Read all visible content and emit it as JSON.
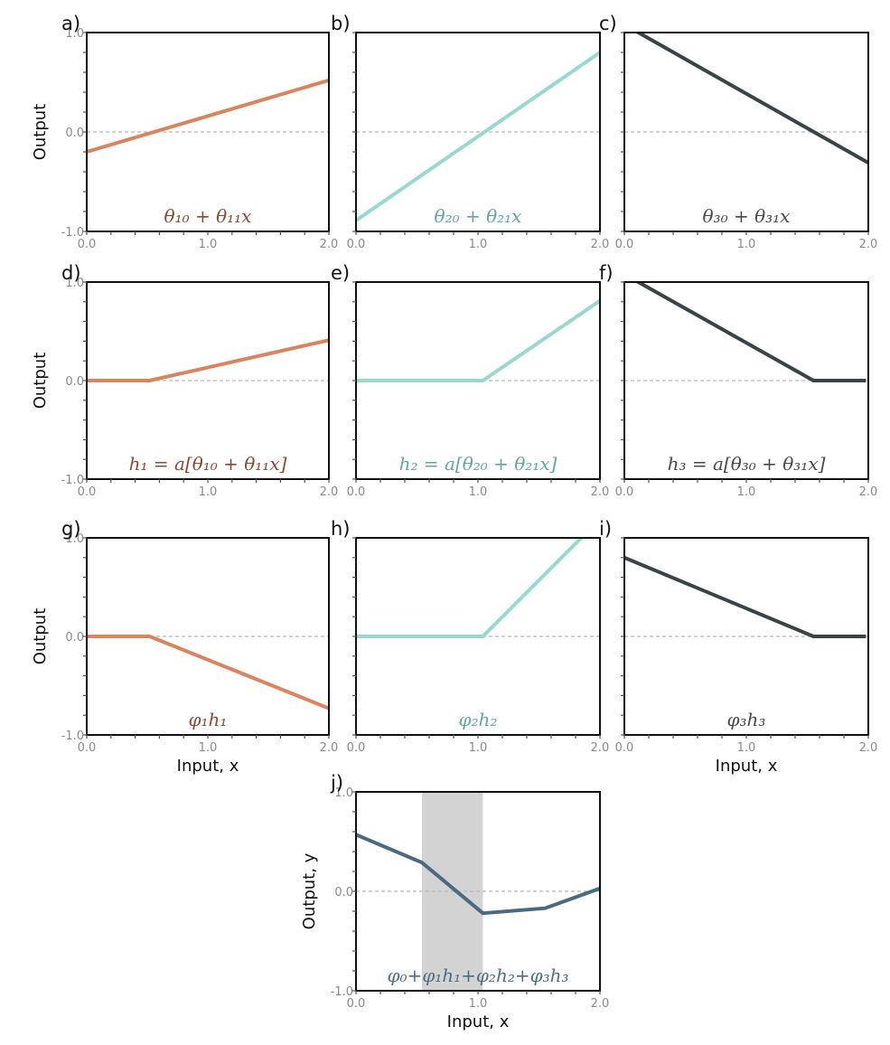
{
  "colors": {
    "orange_line": "#d9845f",
    "orange_text": "#8b4a33",
    "teal_line": "#99d8cf",
    "teal_text": "#5fa8a0",
    "dark_line": "#3a4448",
    "dark_text": "#4a4a4a",
    "final_line": "#4a6a80",
    "final_text": "#4e6e85",
    "shade": "#d3d3d3",
    "zero_line": "#b8b8b8",
    "axis": "#111111"
  },
  "chart_data": [
    {
      "id": "a",
      "type": "line",
      "letter": "a)",
      "equation": "θ₁₀ + θ₁₁x",
      "color": "orange",
      "ylabel": "Output",
      "xlabel": "",
      "xlim": [
        0,
        2
      ],
      "ylim": [
        -1,
        1
      ],
      "xticks": [
        "0.0",
        "1.0",
        "2.0"
      ],
      "yticks": [
        "-1.0",
        "0.0",
        "1.0"
      ],
      "show_yticklabels": true,
      "series": [
        {
          "name": "θ10 + θ11 x",
          "x": [
            0,
            2
          ],
          "y": [
            -0.2,
            0.52
          ]
        }
      ]
    },
    {
      "id": "b",
      "type": "line",
      "letter": "b)",
      "equation": "θ₂₀ + θ₂₁x",
      "color": "teal",
      "ylabel": "",
      "xlabel": "",
      "xlim": [
        0,
        2
      ],
      "ylim": [
        -1,
        1
      ],
      "xticks": [
        "0.0",
        "1.0",
        "2.0"
      ],
      "yticks": [
        "-1.0",
        "0.0",
        "1.0"
      ],
      "show_yticklabels": false,
      "series": [
        {
          "name": "θ20 + θ21 x",
          "x": [
            0,
            2
          ],
          "y": [
            -0.89,
            0.8
          ]
        }
      ]
    },
    {
      "id": "c",
      "type": "line",
      "letter": "c)",
      "equation": "θ₃₀ + θ₃₁x",
      "color": "dark",
      "ylabel": "",
      "xlabel": "",
      "xlim": [
        0,
        2
      ],
      "ylim": [
        -1,
        1
      ],
      "xticks": [
        "0.0",
        "1.0",
        "2.0"
      ],
      "yticks": [
        "-1.0",
        "0.0",
        "1.0"
      ],
      "show_yticklabels": false,
      "series": [
        {
          "name": "θ30 + θ31 x",
          "x": [
            0,
            2
          ],
          "y": [
            1.08,
            -0.31
          ]
        }
      ]
    },
    {
      "id": "d",
      "type": "line",
      "letter": "d)",
      "equation": "h₁ = a[θ₁₀ + θ₁₁x]",
      "color": "orange",
      "ylabel": "Output",
      "xlabel": "",
      "xlim": [
        0,
        2
      ],
      "ylim": [
        -1,
        1
      ],
      "xticks": [
        "0.0",
        "1.0",
        "2.0"
      ],
      "yticks": [
        "-1.0",
        "0.0",
        "1.0"
      ],
      "show_yticklabels": true,
      "series": [
        {
          "name": "h1",
          "x": [
            0,
            0.52,
            2
          ],
          "y": [
            0,
            0,
            0.41
          ]
        }
      ]
    },
    {
      "id": "e",
      "type": "line",
      "letter": "e)",
      "equation": "h₂ = a[θ₂₀ + θ₂₁x]",
      "color": "teal",
      "ylabel": "",
      "xlabel": "",
      "xlim": [
        0,
        2
      ],
      "ylim": [
        -1,
        1
      ],
      "xticks": [
        "0.0",
        "1.0",
        "2.0"
      ],
      "yticks": [
        "-1.0",
        "0.0",
        "1.0"
      ],
      "show_yticklabels": false,
      "series": [
        {
          "name": "h2",
          "x": [
            0,
            1.04,
            2
          ],
          "y": [
            0,
            0,
            0.81
          ]
        }
      ]
    },
    {
      "id": "f",
      "type": "line",
      "letter": "f)",
      "equation": "h₃ = a[θ₃₀ + θ₃₁x]",
      "color": "dark",
      "ylabel": "",
      "xlabel": "",
      "xlim": [
        0,
        2
      ],
      "ylim": [
        -1,
        1
      ],
      "xticks": [
        "0.0",
        "1.0",
        "2.0"
      ],
      "yticks": [
        "-1.0",
        "0.0",
        "1.0"
      ],
      "show_yticklabels": false,
      "series": [
        {
          "name": "h3",
          "x": [
            0,
            1.55,
            1.98
          ],
          "y": [
            1.08,
            0,
            0
          ]
        }
      ]
    },
    {
      "id": "g",
      "type": "line",
      "letter": "g)",
      "equation": "φ₁h₁",
      "color": "orange",
      "ylabel": "Output",
      "xlabel": "Input, x",
      "xlim": [
        0,
        2
      ],
      "ylim": [
        -1,
        1
      ],
      "xticks": [
        "0.0",
        "1.0",
        "2.0"
      ],
      "yticks": [
        "-1.0",
        "0.0",
        "1.0"
      ],
      "show_yticklabels": true,
      "series": [
        {
          "name": "φ1 h1",
          "x": [
            0,
            0.52,
            2
          ],
          "y": [
            0,
            0,
            -0.73
          ]
        }
      ]
    },
    {
      "id": "h",
      "type": "line",
      "letter": "h)",
      "equation": "φ₂h₂",
      "color": "teal",
      "ylabel": "",
      "xlabel": "",
      "xlim": [
        0,
        2
      ],
      "ylim": [
        -1,
        1
      ],
      "xticks": [
        "0.0",
        "1.0",
        "2.0"
      ],
      "yticks": [
        "-1.0",
        "0.0",
        "1.0"
      ],
      "show_yticklabels": false,
      "series": [
        {
          "name": "φ2 h2",
          "x": [
            0,
            1.04,
            2
          ],
          "y": [
            0,
            0,
            1.19
          ]
        }
      ]
    },
    {
      "id": "i",
      "type": "line",
      "letter": "i)",
      "equation": "φ₃h₃",
      "color": "dark",
      "ylabel": "",
      "xlabel": "Input, x",
      "xlim": [
        0,
        2
      ],
      "ylim": [
        -1,
        1
      ],
      "xticks": [
        "0.0",
        "1.0",
        "2.0"
      ],
      "yticks": [
        "-1.0",
        "0.0",
        "1.0"
      ],
      "show_yticklabels": false,
      "series": [
        {
          "name": "φ3 h3",
          "x": [
            0,
            1.55,
            1.98
          ],
          "y": [
            0.8,
            0,
            0
          ]
        }
      ]
    },
    {
      "id": "j",
      "type": "line",
      "letter": "j)",
      "equation": "φ₀+φ₁h₁+φ₂h₂+φ₃h₃",
      "color": "final",
      "ylabel": "Output, y",
      "xlabel": "Input, x",
      "xlim": [
        0,
        2
      ],
      "ylim": [
        -1,
        1
      ],
      "xticks": [
        "0.0",
        "1.0",
        "2.0"
      ],
      "yticks": [
        "-1.0",
        "0.0",
        "1.0"
      ],
      "show_yticklabels": true,
      "shaded_region": [
        0.54,
        1.04
      ],
      "series": [
        {
          "name": "y",
          "x": [
            0,
            0.54,
            1.04,
            1.55,
            2
          ],
          "y": [
            0.57,
            0.29,
            -0.22,
            -0.17,
            0.03
          ]
        }
      ]
    }
  ]
}
